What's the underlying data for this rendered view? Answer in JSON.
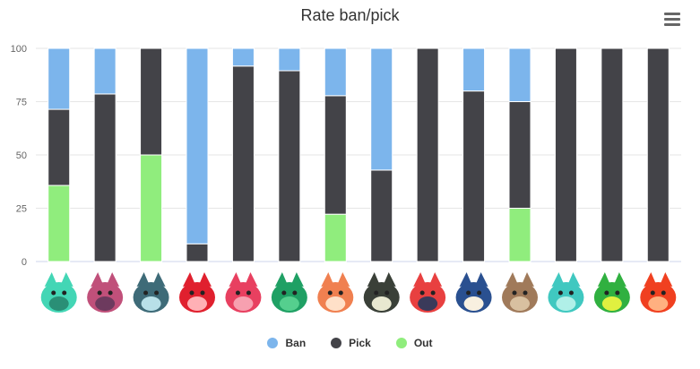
{
  "title": "Rate ban/pick",
  "menu_icon": "hamburger-menu-icon",
  "chart_data": {
    "type": "bar",
    "stacked": true,
    "categories_note": "x-axis categories are shown as character portrait images (no text labels)",
    "categories": [
      "char-1",
      "char-2",
      "char-3",
      "char-4",
      "char-5",
      "char-6",
      "char-7",
      "char-8",
      "char-9",
      "char-10",
      "char-11",
      "char-12",
      "char-13",
      "char-14"
    ],
    "series": [
      {
        "name": "Ban",
        "color": "#7cb5ec",
        "values": [
          28.6,
          21.4,
          0,
          91.7,
          8.3,
          10.5,
          22.2,
          57.1,
          0,
          20,
          25,
          0,
          0,
          0
        ]
      },
      {
        "name": "Pick",
        "color": "#434348",
        "values": [
          35.7,
          78.6,
          50,
          8.3,
          91.7,
          89.5,
          55.6,
          42.9,
          100,
          80,
          50,
          100,
          100,
          100
        ]
      },
      {
        "name": "Out",
        "color": "#90ed7d",
        "values": [
          35.7,
          0,
          50,
          0,
          0,
          0,
          22.2,
          0,
          0,
          0,
          25,
          0,
          0,
          0
        ]
      }
    ],
    "ylim": [
      0,
      100
    ],
    "yticks": [
      "0",
      "25",
      "50",
      "75",
      "100"
    ],
    "grid": true,
    "legend_position": "bottom-center"
  },
  "portrait_colors": [
    [
      "#43d6b5",
      "#2a8f76"
    ],
    [
      "#c0507a",
      "#6d3a5e"
    ],
    [
      "#3e6b78",
      "#b8e0e8"
    ],
    [
      "#e0202e",
      "#ffb0b5"
    ],
    [
      "#e84060",
      "#f7a0b0"
    ],
    [
      "#1fa064",
      "#55cf8e"
    ],
    [
      "#f08050",
      "#ffe0c8"
    ],
    [
      "#3a4038",
      "#e8e8d0"
    ],
    [
      "#e84040",
      "#3a3a5a"
    ],
    [
      "#2a5090",
      "#f8f0e0"
    ],
    [
      "#a07a5a",
      "#d8c0a0"
    ],
    [
      "#40c8c0",
      "#b0f0e8"
    ],
    [
      "#30b040",
      "#e0f040"
    ],
    [
      "#f04020",
      "#ffb080"
    ]
  ]
}
